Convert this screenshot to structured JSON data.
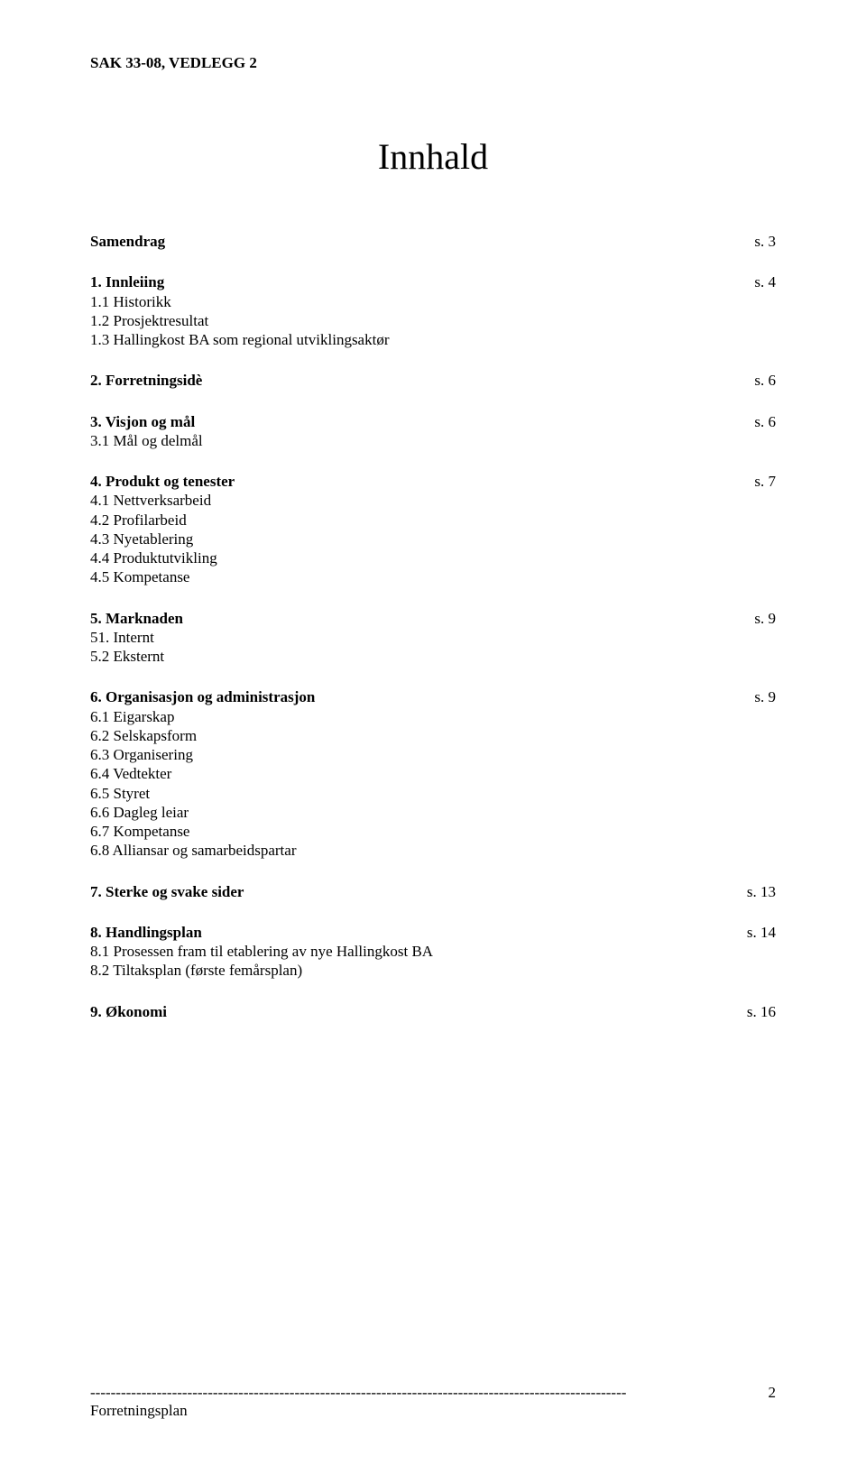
{
  "header": "SAK 33-08, VEDLEGG 2",
  "title": "Innhald",
  "toc": {
    "samendrag": {
      "label": "Samendrag",
      "page": "s.  3"
    },
    "s1": {
      "label": "1. Innleiing",
      "page": "s.  4",
      "sub1": "1.1 Historikk",
      "sub2": "1.2 Prosjektresultat",
      "sub3": "1.3 Hallingkost BA som regional utviklingsaktør"
    },
    "s2": {
      "label": "2. Forretningsidè",
      "page": "s.  6"
    },
    "s3": {
      "label": "3. Visjon og mål",
      "page": "s.  6",
      "sub1": "3.1 Mål og delmål"
    },
    "s4": {
      "label": "4. Produkt og tenester",
      "page": "s.  7",
      "sub1": "4.1 Nettverksarbeid",
      "sub2": "4.2 Profilarbeid",
      "sub3": "4.3 Nyetablering",
      "sub4": "4.4 Produktutvikling",
      "sub5": "4.5 Kompetanse"
    },
    "s5": {
      "label": "5. Marknaden",
      "page": "s.  9",
      "sub1": "51. Internt",
      "sub2": "5.2 Eksternt"
    },
    "s6": {
      "label": "6. Organisasjon og administrasjon",
      "page": "s.  9",
      "sub1": "6.1 Eigarskap",
      "sub2": "6.2 Selskapsform",
      "sub3": "6.3 Organisering",
      "sub4": "6.4 Vedtekter",
      "sub5": "6.5 Styret",
      "sub6": "6.6 Dagleg leiar",
      "sub7": "6.7 Kompetanse",
      "sub8": "6.8 Alliansar og samarbeidspartar"
    },
    "s7": {
      "label": "7. Sterke og svake sider",
      "page": "s. 13"
    },
    "s8": {
      "label": "8. Handlingsplan",
      "page": "s. 14",
      "sub1": "8.1 Prosessen fram til etablering av nye Hallingkost BA",
      "sub2": "8.2 Tiltaksplan (første femårsplan)"
    },
    "s9": {
      "label": "9. Økonomi",
      "page": "s. 16"
    }
  },
  "footer": {
    "dashes": "---------------------------------------------------------------------------------------------------------",
    "label": "Forretningsplan",
    "pagenum": "2"
  }
}
